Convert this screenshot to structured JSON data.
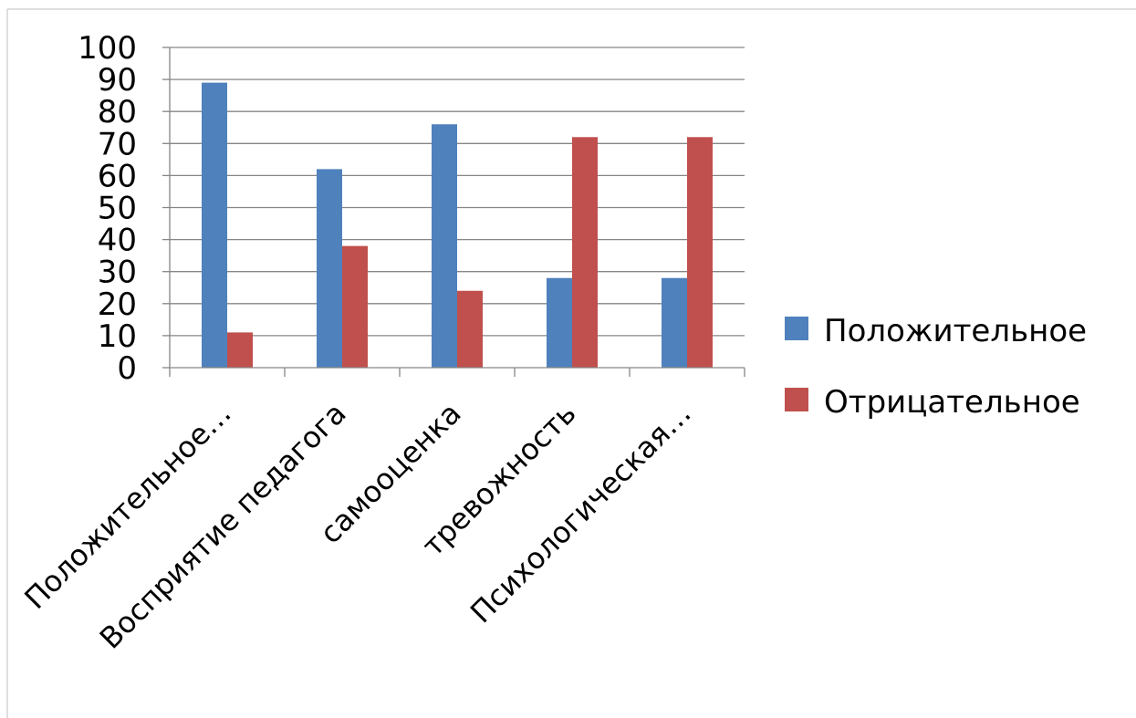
{
  "chart_data": {
    "type": "bar",
    "categories": [
      "Положительное…",
      "Восприятие педагога",
      "самооценка",
      "тревожность",
      "Психологическая…"
    ],
    "series": [
      {
        "name": "Положительное",
        "color": "#4F81BD",
        "values": [
          89,
          62,
          76,
          28,
          28
        ]
      },
      {
        "name": "Отрицательное",
        "color": "#C0504D",
        "values": [
          11,
          38,
          24,
          72,
          72
        ]
      }
    ],
    "ylim": [
      0,
      100
    ],
    "yticks": [
      "0",
      "10",
      "20",
      "30",
      "40",
      "50",
      "60",
      "70",
      "80",
      "90",
      "100"
    ],
    "grid": true,
    "legend_position": "right",
    "title": "",
    "xlabel": "",
    "ylabel": ""
  }
}
